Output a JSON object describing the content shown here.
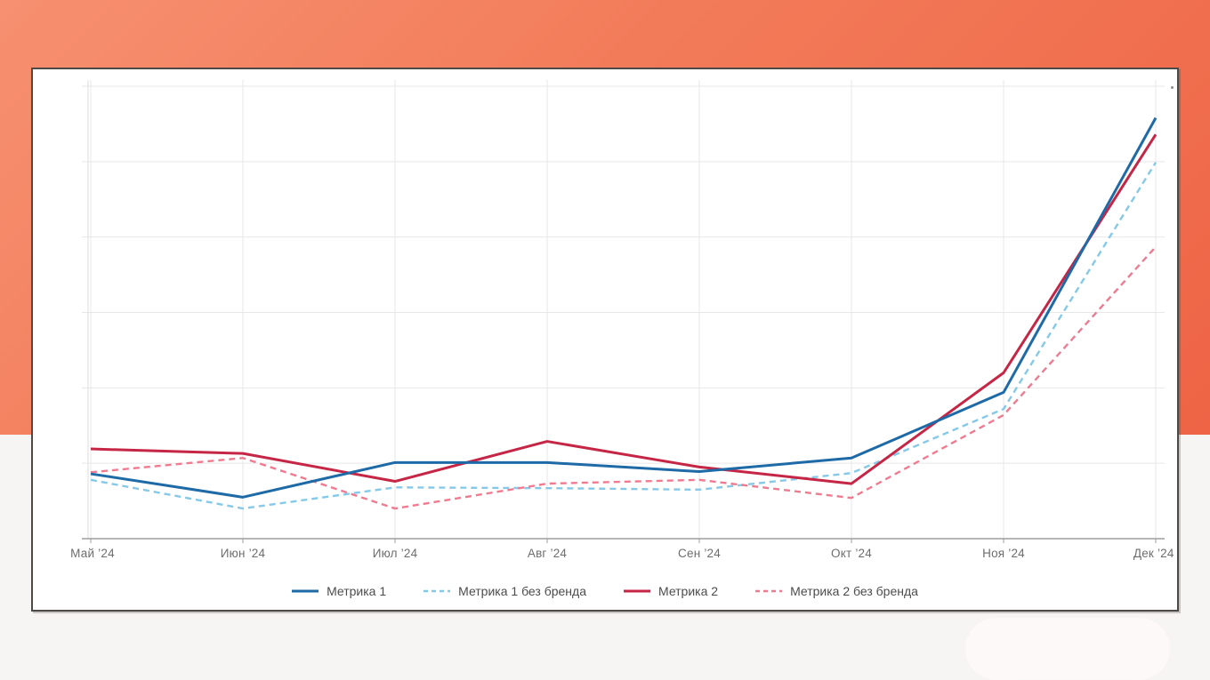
{
  "background": {
    "orange_band_color_top": "#f69070",
    "orange_band_color_bottom": "#ee6445",
    "lower_background_color": "#f7f5f3"
  },
  "chart_card": {
    "background": "#ffffff",
    "border_color": "#4d4946",
    "gridline_color": "#e7e7e7",
    "axis_line_color": "#9d9d9d",
    "corner_dot": "small gray dot"
  },
  "chart_data": {
    "type": "line",
    "title": "",
    "xlabel": "",
    "ylabel": "",
    "categories": [
      "Май ’24",
      "Июн ’24",
      "Июл ’24",
      "Авг ’24",
      "Сен ’24",
      "Окт ’24",
      "Ноя ’24",
      "Дек ’24"
    ],
    "series": [
      {
        "name": "Метрика 1",
        "style": "solid",
        "color": "#1e6aa7",
        "values": [
          8.6,
          5.5,
          10.1,
          10.1,
          8.9,
          10.7,
          19.4,
          55.8
        ]
      },
      {
        "name": "Метрика 1 без бренда",
        "style": "dashed",
        "color": "#85c9e8",
        "values": [
          7.8,
          4.0,
          6.8,
          6.7,
          6.5,
          8.7,
          17.2,
          49.9
        ]
      },
      {
        "name": "Метрика 2",
        "style": "solid",
        "color": "#c62646",
        "values": [
          11.9,
          11.3,
          7.6,
          12.9,
          9.5,
          7.3,
          22.0,
          53.6
        ]
      },
      {
        "name": "Метрика 2 без бренда",
        "style": "dashed",
        "color": "#f07a90",
        "values": [
          8.8,
          10.7,
          4.0,
          7.3,
          7.8,
          5.4,
          16.4,
          38.7
        ]
      }
    ],
    "ylim": [
      0,
      60
    ],
    "y_gridline_step": 10,
    "y_axis_labels_visible": false,
    "grid": true,
    "legend_position": "bottom"
  }
}
